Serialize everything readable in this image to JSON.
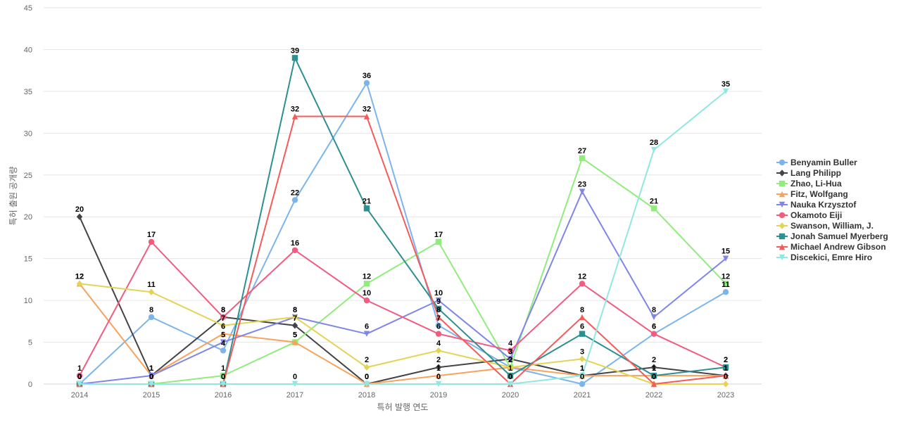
{
  "chart_data": {
    "type": "line",
    "xlabel": "특허 발행 연도",
    "ylabel": "특허 출원 공개량",
    "ylim": [
      0,
      45
    ],
    "yticks": [
      0,
      5,
      10,
      15,
      20,
      25,
      30,
      35,
      40,
      45
    ],
    "grid": true,
    "legend_position": "right",
    "categories": [
      "2014",
      "2015",
      "2016",
      "2017",
      "2018",
      "2019",
      "2020",
      "2021",
      "2022",
      "2023"
    ],
    "series": [
      {
        "name": "Benyamin Buller",
        "color": "#7cb5ec",
        "marker": "circle",
        "values": [
          0,
          8,
          4,
          22,
          36,
          7,
          2,
          0,
          6,
          11
        ]
      },
      {
        "name": "Lang Philipp",
        "color": "#434348",
        "marker": "diamond",
        "values": [
          20,
          1,
          8,
          7,
          0,
          2,
          3,
          1,
          2,
          1
        ]
      },
      {
        "name": "Zhao, Li-Hua",
        "color": "#90ed7d",
        "marker": "square",
        "values": [
          0,
          0,
          1,
          5,
          12,
          17,
          2,
          27,
          21,
          12
        ]
      },
      {
        "name": "Fitz, Wolfgang",
        "color": "#f7a35c",
        "marker": "triangle",
        "values": [
          12,
          1,
          6,
          5,
          0,
          1,
          2,
          1,
          1,
          1
        ]
      },
      {
        "name": "Nauka Krzysztof",
        "color": "#8085e9",
        "marker": "triangle-down",
        "values": [
          0,
          1,
          5,
          8,
          6,
          10,
          3,
          23,
          8,
          15
        ]
      },
      {
        "name": "Okamoto Eiji",
        "color": "#f15c80",
        "marker": "circle",
        "values": [
          1,
          17,
          8,
          16,
          10,
          6,
          4,
          12,
          6,
          2
        ]
      },
      {
        "name": "Swanson, William, J.",
        "color": "#e4d354",
        "marker": "diamond",
        "values": [
          12,
          11,
          7,
          8,
          2,
          4,
          2,
          3,
          0,
          0
        ]
      },
      {
        "name": "Jonah Samuel Myerberg",
        "color": "#2b908f",
        "marker": "square",
        "values": [
          0,
          0,
          0,
          39,
          21,
          9,
          1,
          6,
          1,
          2
        ]
      },
      {
        "name": "Michael Andrew Gibson",
        "color": "#f45b5b",
        "marker": "triangle",
        "values": [
          0,
          0,
          0,
          32,
          32,
          8,
          0,
          8,
          0,
          1
        ]
      },
      {
        "name": "Discekici, Emre Hiro",
        "color": "#91e8e1",
        "marker": "triangle-down",
        "values": [
          0,
          0,
          0,
          0,
          0,
          0,
          0,
          1,
          28,
          35
        ]
      }
    ]
  }
}
